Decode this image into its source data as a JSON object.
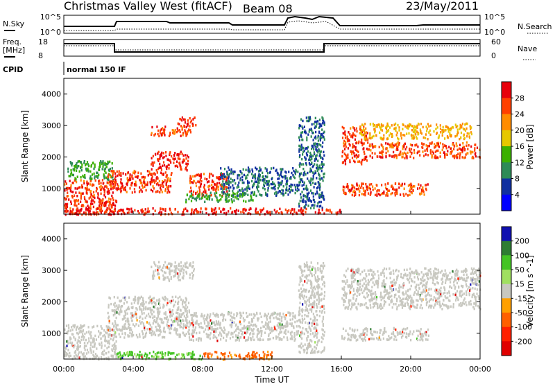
{
  "header": {
    "title": "Christmas Valley West (fitACF)",
    "beam": "Beam 08",
    "date": "23/May/2011"
  },
  "top_panel": {
    "left_label": "N.Sky",
    "left_tick_high": "10^5",
    "left_tick_low": "10^0",
    "right_label": "N.Search",
    "right_tick_high": "10^5",
    "right_tick_low": "10^0"
  },
  "freq_panel": {
    "left_label_line1": "Freq.",
    "left_label_line2": "[MHz]",
    "left_ticks": [
      "18",
      "8"
    ],
    "right_label": "Nave",
    "right_ticks": [
      "60",
      "0"
    ]
  },
  "cpid": {
    "label": "CPID",
    "value": "normal 150 IF"
  },
  "x_axis": {
    "ticks": [
      "00:00",
      "04:00",
      "08:00",
      "12:00",
      "16:00",
      "20:00",
      "00:00"
    ],
    "label": "Time UT"
  },
  "power_colorbar": {
    "label": "Power [dB]",
    "ticks": [
      "28",
      "24",
      "20",
      "16",
      "12",
      "8",
      "4"
    ],
    "colors": [
      "#e8000b",
      "#ff4000",
      "#ff8c00",
      "#e6c800",
      "#3cb000",
      "#2e8b57",
      "#1030a0",
      "#0000ff"
    ]
  },
  "velocity_colorbar": {
    "label": "Velocity [m s^-1]",
    "ticks": [
      "200",
      "100",
      "50",
      "15",
      "-15",
      "-50",
      "-100",
      "-200"
    ],
    "colors": [
      "#1010b0",
      "#2e7d32",
      "#44c424",
      "#a0e060",
      "#c8c8c0",
      "#ffa000",
      "#ff6000",
      "#ff2000",
      "#e00000"
    ]
  },
  "chart_data": [
    {
      "type": "heatmap",
      "title": "Power",
      "xlabel": "",
      "ylabel": "Slant Range [km]",
      "yticks": [
        1000,
        2000,
        3000,
        4000
      ],
      "ylim": [
        180,
        4500
      ],
      "xlim": [
        0,
        24
      ],
      "zlabel": "Power [dB]",
      "zlim": [
        0,
        30
      ],
      "blobs": [
        {
          "t0": 0.0,
          "t1": 3.0,
          "r0": 200,
          "r1": 1300,
          "z": 25
        },
        {
          "t0": 0.2,
          "t1": 2.8,
          "r0": 1300,
          "r1": 1900,
          "z": 10
        },
        {
          "t0": 2.5,
          "t1": 6.2,
          "r0": 900,
          "r1": 1600,
          "z": 25
        },
        {
          "t0": 5.0,
          "t1": 7.2,
          "r0": 1600,
          "r1": 2200,
          "z": 27
        },
        {
          "t0": 5.0,
          "t1": 7.3,
          "r0": 2700,
          "r1": 3000,
          "z": 24
        },
        {
          "t0": 6.5,
          "t1": 7.6,
          "r0": 3000,
          "r1": 3300,
          "z": 26
        },
        {
          "t0": 7.2,
          "t1": 9.5,
          "r0": 800,
          "r1": 1500,
          "z": 25
        },
        {
          "t0": 9.0,
          "t1": 13.5,
          "r0": 800,
          "r1": 1700,
          "z": 6
        },
        {
          "t0": 7.0,
          "t1": 11.0,
          "r0": 600,
          "r1": 900,
          "z": 10
        },
        {
          "t0": 13.5,
          "t1": 15.0,
          "r0": 400,
          "r1": 3300,
          "z": 6
        },
        {
          "t0": 16.0,
          "t1": 17.5,
          "r0": 1800,
          "r1": 3000,
          "z": 25
        },
        {
          "t0": 17.5,
          "t1": 24.0,
          "r0": 2000,
          "r1": 2500,
          "z": 24
        },
        {
          "t0": 16.0,
          "t1": 21.0,
          "r0": 800,
          "r1": 1200,
          "z": 24
        },
        {
          "t0": 17.0,
          "t1": 23.5,
          "r0": 2600,
          "r1": 3100,
          "z": 18
        },
        {
          "t0": 0.0,
          "t1": 16.0,
          "r0": 200,
          "r1": 400,
          "z": 27
        }
      ]
    },
    {
      "type": "heatmap",
      "title": "Velocity",
      "xlabel": "Time UT",
      "ylabel": "Slant Range [km]",
      "yticks": [
        1000,
        2000,
        3000,
        4000
      ],
      "ylim": [
        180,
        4500
      ],
      "xlim": [
        0,
        24
      ],
      "zlabel": "Velocity [m s^-1]",
      "zlim": [
        -200,
        200
      ],
      "blobs": [
        {
          "t0": 0.0,
          "t1": 3.0,
          "r0": 200,
          "r1": 1300,
          "z": 0
        },
        {
          "t0": 2.5,
          "t1": 7.2,
          "r0": 900,
          "r1": 2200,
          "z": 0
        },
        {
          "t0": 5.0,
          "t1": 7.6,
          "r0": 2700,
          "r1": 3300,
          "z": 0
        },
        {
          "t0": 7.2,
          "t1": 13.5,
          "r0": 800,
          "r1": 1700,
          "z": 0
        },
        {
          "t0": 13.5,
          "t1": 15.0,
          "r0": 400,
          "r1": 3300,
          "z": 0
        },
        {
          "t0": 16.0,
          "t1": 24.0,
          "r0": 1800,
          "r1": 3100,
          "z": 0
        },
        {
          "t0": 16.0,
          "t1": 21.0,
          "r0": 800,
          "r1": 1200,
          "z": 0
        },
        {
          "t0": 3.0,
          "t1": 8.0,
          "r0": 200,
          "r1": 450,
          "z": 40
        },
        {
          "t0": 8.0,
          "t1": 12.0,
          "r0": 200,
          "r1": 450,
          "z": -40
        }
      ]
    }
  ]
}
